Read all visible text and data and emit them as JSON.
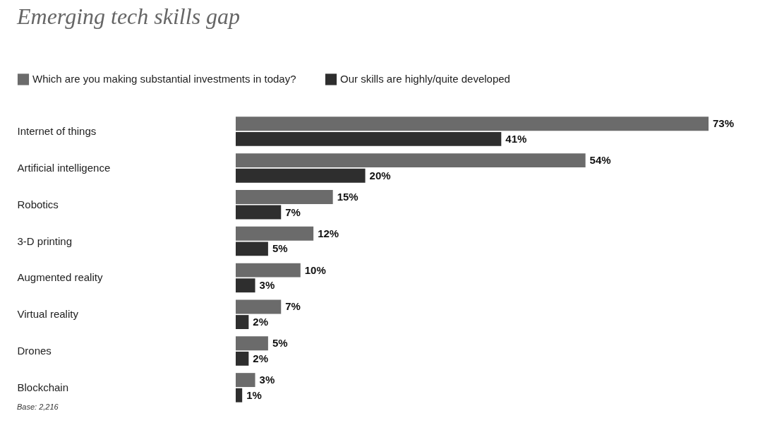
{
  "chart_data": {
    "type": "bar",
    "orientation": "horizontal",
    "title": "Emerging tech skills gap",
    "categories": [
      "Internet of things",
      "Artificial intelligence",
      "Robotics",
      "3-D printing",
      "Augmented reality",
      "Virtual reality",
      "Drones",
      "Blockchain"
    ],
    "series": [
      {
        "name": "Which are you making substantial investments in today?",
        "color": "#6b6b6b",
        "values": [
          73,
          54,
          15,
          12,
          10,
          7,
          5,
          3
        ],
        "value_labels": [
          "73%",
          "54%",
          "15%",
          "12%",
          "10%",
          "7%",
          "5%",
          "3%"
        ]
      },
      {
        "name": "Our skills are highly/quite developed",
        "color": "#2e2e2e",
        "values": [
          41,
          20,
          7,
          5,
          3,
          2,
          2,
          1
        ],
        "value_labels": [
          "41%",
          "20%",
          "7%",
          "5%",
          "3%",
          "2%",
          "2%",
          "1%"
        ]
      }
    ],
    "legend": "top left",
    "grid": false,
    "annotations": [
      "Base: 2,216"
    ]
  }
}
